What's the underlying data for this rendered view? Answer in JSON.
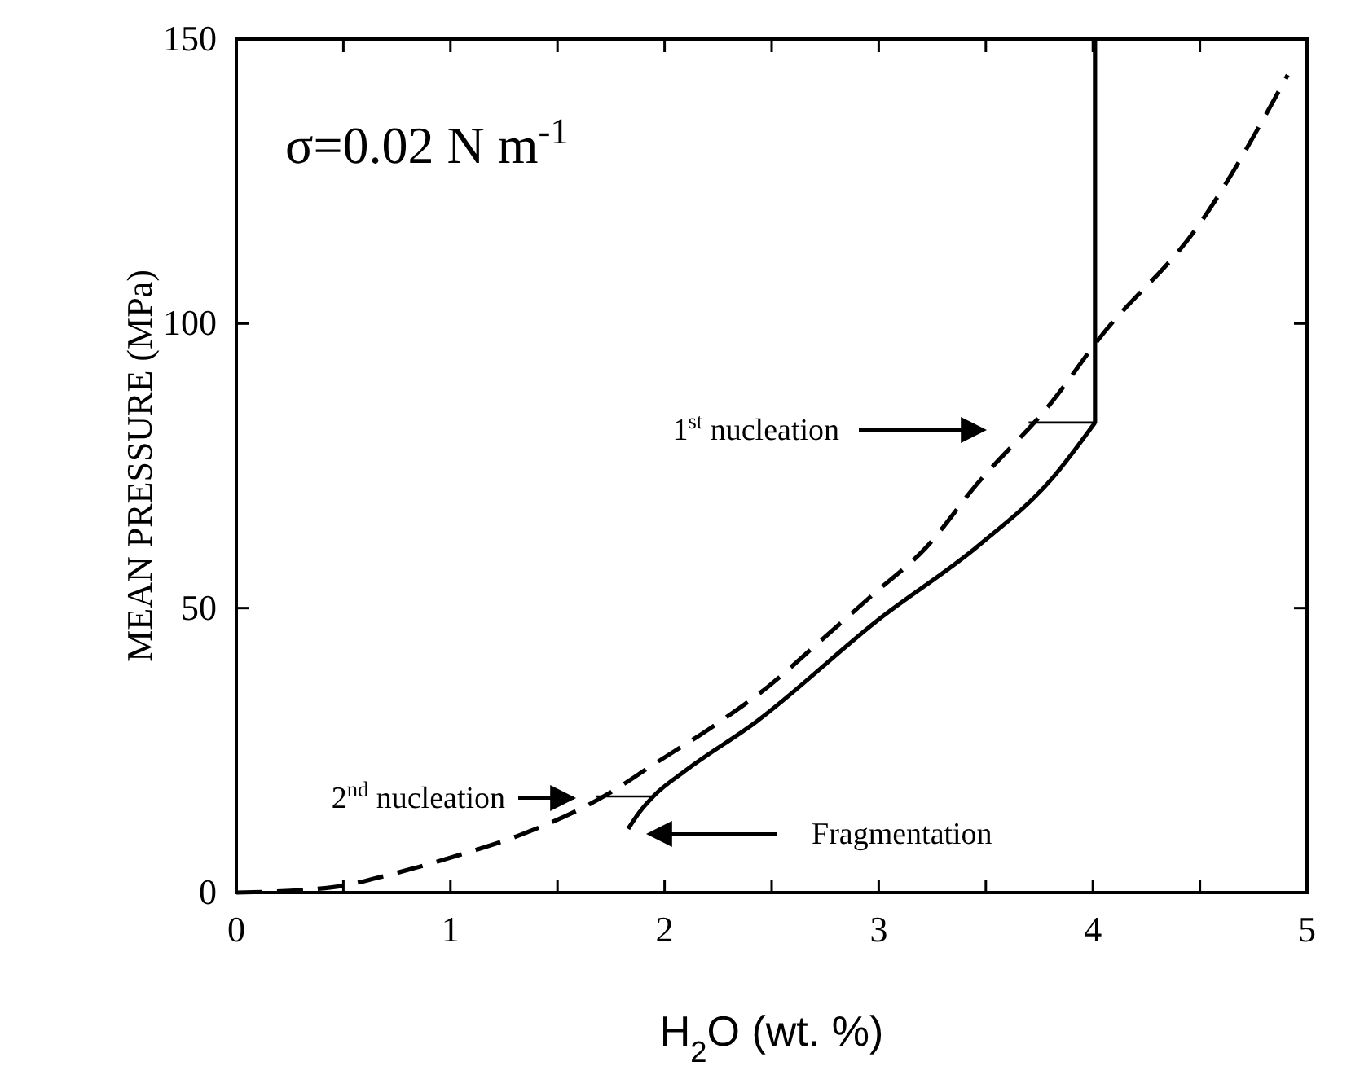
{
  "chart_data": {
    "type": "line",
    "xlabel": "H$_{2}$O (wt. %)",
    "ylabel": "MEAN PRESSURE (MPa)",
    "xlim": [
      0,
      5
    ],
    "ylim": [
      0,
      150
    ],
    "xticks": [
      0,
      {
        "value": 0.5,
        "label": null
      },
      1,
      {
        "value": 1.5,
        "label": null
      },
      2,
      {
        "value": 2.5,
        "label": null
      },
      3,
      {
        "value": 3.5,
        "label": null
      },
      4,
      {
        "value": 4.5,
        "label": null
      },
      5
    ],
    "yticks": [
      0,
      50,
      100,
      150
    ],
    "grid": false,
    "marker": "none",
    "series": [
      {
        "color": "#000000",
        "line_style": "solid",
        "x": [
          1.83,
          1.88,
          1.95,
          2.1,
          2.42,
          3.01,
          3.46,
          3.81,
          4.01
        ],
        "values": [
          11.2,
          14,
          17,
          21.5,
          29.8,
          48.3,
          60.8,
          72.8,
          82.6
        ]
      },
      {
        "color": "#000000",
        "line_style": "dashed",
        "x": [
          0,
          0.33,
          0.5,
          0.66,
          1.04,
          1.31,
          1.73,
          1.96,
          2.21,
          2.49,
          2.73,
          2.98,
          3.22,
          3.45,
          3.81,
          4.03,
          4.5,
          4.91
        ],
        "values": [
          0,
          0.5,
          1.2,
          2.6,
          6.6,
          9.9,
          17.2,
          22.8,
          28.8,
          36.4,
          44.3,
          52.6,
          60.6,
          71.4,
          86.3,
          97.4,
          117.6,
          143.7
        ]
      },
      {
        "color": "#000000",
        "line_style": "solid",
        "x": [
          4.01,
          4.01
        ],
        "values": [
          82.6,
          150
        ]
      },
      {
        "color": "#000000",
        "line_style": "solid",
        "x": [
          3.7,
          4.01
        ],
        "values": [
          82.6,
          82.6
        ]
      },
      {
        "color": "#000000",
        "line_style": "solid",
        "x": [
          1.68,
          1.95
        ],
        "values": [
          16.9,
          16.9
        ]
      }
    ],
    "annotations": [
      "σ=0.02 N m$^{-1}$",
      "1$^{st}$ nucleation",
      "2$^{nd}$ nucleation",
      "Fragmentation"
    ]
  }
}
